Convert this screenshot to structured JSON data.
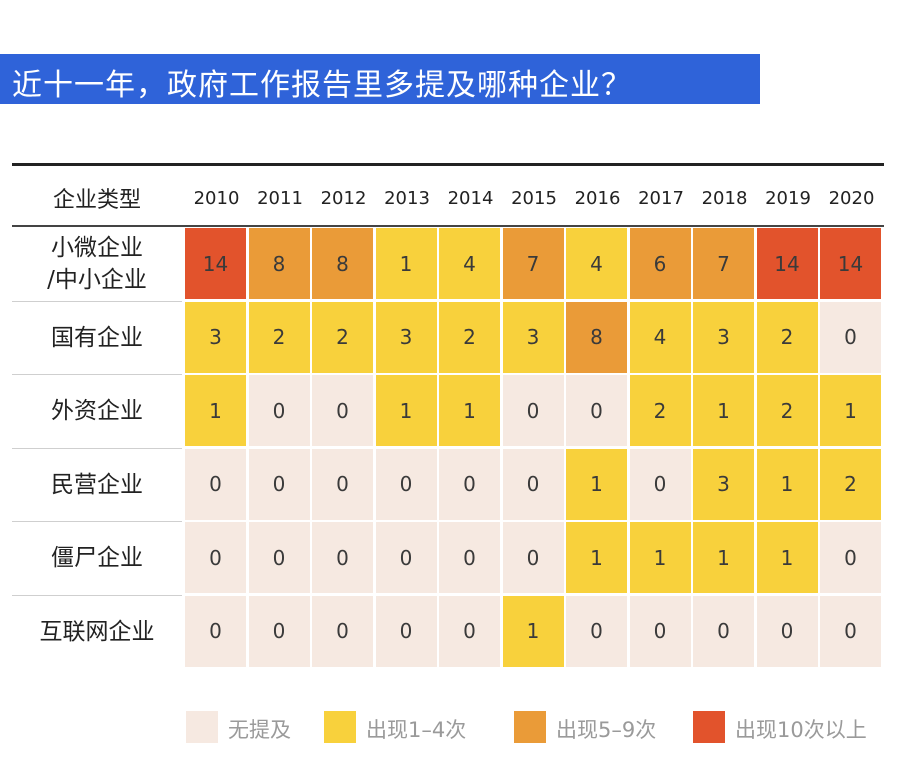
{
  "title": "近十一年，政府工作报告里多提及哪种企业？",
  "colors": {
    "none": "#f6e9e1",
    "low": "#f8d13c",
    "mid": "#ea9b38",
    "high": "#e2532c",
    "title_bg": "#2f63d9"
  },
  "chart_data": {
    "type": "heatmap",
    "title": "近十一年，政府工作报告里多提及哪种企业？",
    "row_header": "企业类型",
    "x": [
      "2010",
      "2011",
      "2012",
      "2013",
      "2014",
      "2015",
      "2016",
      "2017",
      "2018",
      "2019",
      "2020"
    ],
    "rows": [
      {
        "name": "小微企业\n/中小企业",
        "values": [
          14,
          8,
          8,
          1,
          4,
          7,
          4,
          6,
          7,
          14,
          14
        ]
      },
      {
        "name": "国有企业",
        "values": [
          3,
          2,
          2,
          3,
          2,
          3,
          8,
          4,
          3,
          2,
          0
        ]
      },
      {
        "name": "外资企业",
        "values": [
          1,
          0,
          0,
          1,
          1,
          0,
          0,
          2,
          1,
          2,
          1
        ]
      },
      {
        "name": "民营企业",
        "values": [
          0,
          0,
          0,
          0,
          0,
          0,
          1,
          0,
          3,
          1,
          2
        ]
      },
      {
        "name": "僵尸企业",
        "values": [
          0,
          0,
          0,
          0,
          0,
          0,
          1,
          1,
          1,
          1,
          0
        ]
      },
      {
        "name": "互联网企业",
        "values": [
          0,
          0,
          0,
          0,
          0,
          1,
          0,
          0,
          0,
          0,
          0
        ]
      }
    ],
    "legend": [
      {
        "label": "无提及",
        "color": "#f6e9e1"
      },
      {
        "label": "出现1–4次",
        "color": "#f8d13c"
      },
      {
        "label": "出现5–9次",
        "color": "#ea9b38"
      },
      {
        "label": "出现10次以上",
        "color": "#e2532c"
      }
    ]
  }
}
